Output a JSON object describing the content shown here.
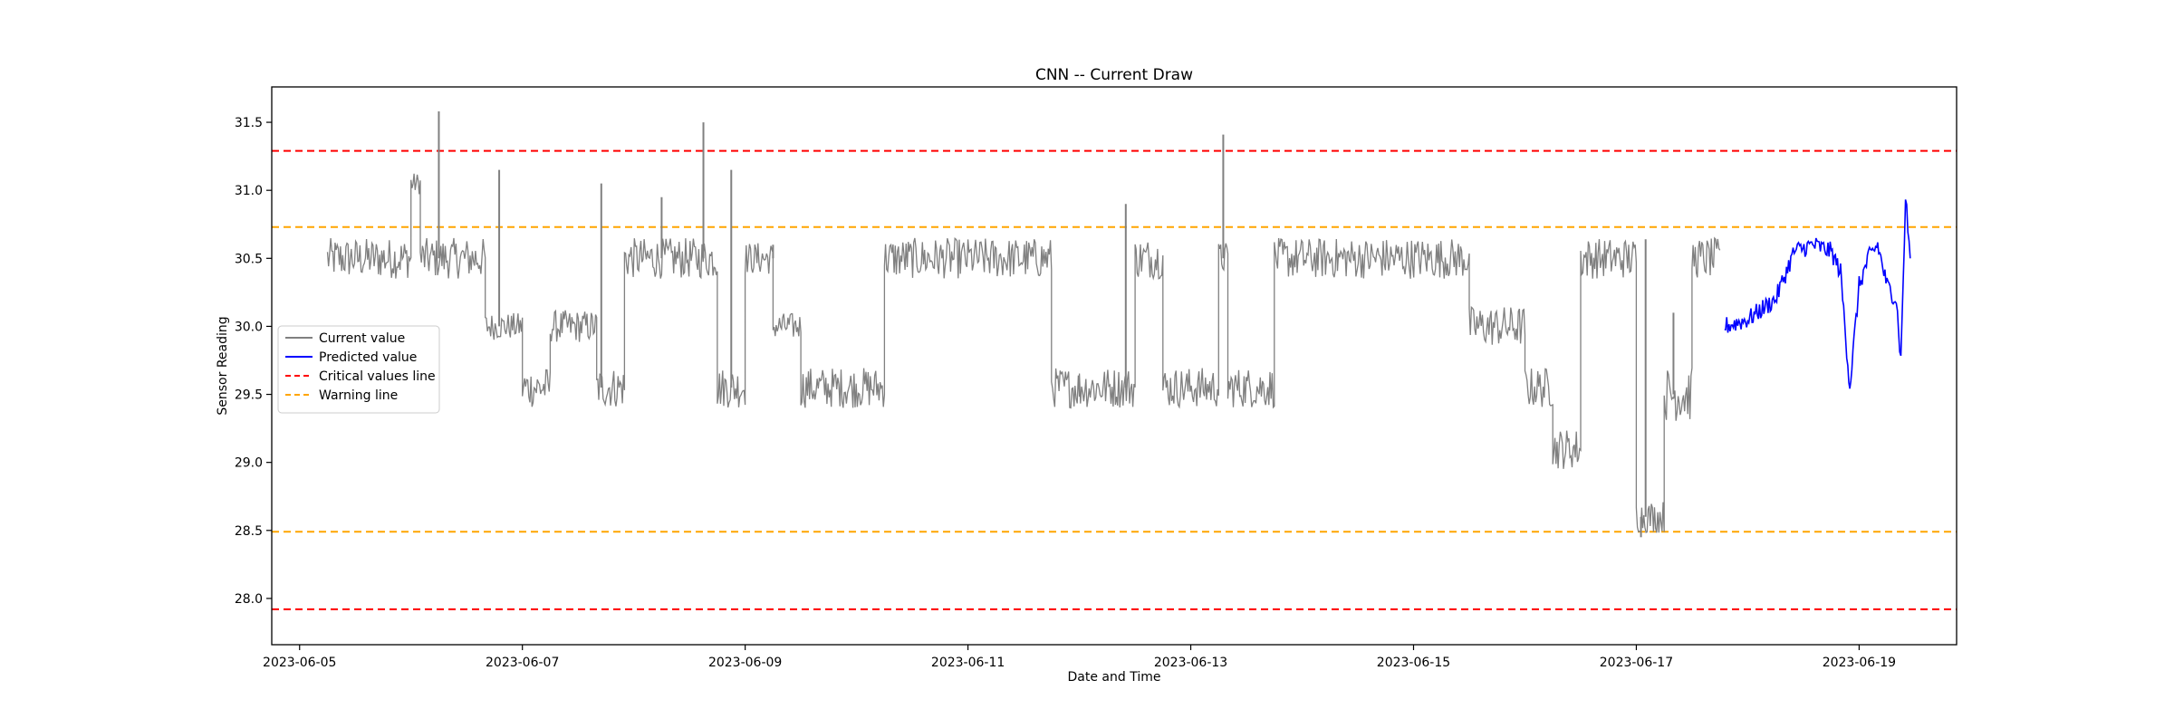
{
  "chart_data": {
    "type": "line",
    "title": "CNN -- Current Draw",
    "xlabel": "Date and Time",
    "ylabel": "Sensor Reading",
    "x_range": [
      "2023-06-04T18:00",
      "2023-06-19T21:00"
    ],
    "ylim": [
      27.66,
      31.76
    ],
    "grid": false,
    "x_ticks": [
      "2023-06-05",
      "2023-06-07",
      "2023-06-09",
      "2023-06-11",
      "2023-06-13",
      "2023-06-15",
      "2023-06-17",
      "2023-06-19"
    ],
    "y_ticks": [
      "28.0",
      "28.5",
      "29.0",
      "29.5",
      "30.0",
      "30.5",
      "31.0",
      "31.5"
    ],
    "legend": {
      "position": "center-left",
      "entries": [
        {
          "label": "Current value",
          "color": "#808080",
          "style": "solid"
        },
        {
          "label": "Predicted value",
          "color": "#0000ff",
          "style": "solid"
        },
        {
          "label": "Critical values line",
          "color": "#ff0000",
          "style": "dashed"
        },
        {
          "label": "Warning line",
          "color": "#ffa500",
          "style": "dashed"
        }
      ]
    },
    "reference_lines": [
      {
        "name": "Critical values line",
        "y": 31.29,
        "color": "#ff0000",
        "style": "dashed"
      },
      {
        "name": "Critical values line",
        "y": 27.92,
        "color": "#ff0000",
        "style": "dashed"
      },
      {
        "name": "Warning line",
        "y": 30.73,
        "color": "#ffa500",
        "style": "dashed"
      },
      {
        "name": "Warning line",
        "y": 28.49,
        "color": "#ffa500",
        "style": "dashed"
      }
    ],
    "series": [
      {
        "name": "Current value",
        "color": "#808080",
        "segments": [
          {
            "start": "2023-06-05T06:00",
            "end": "2023-06-06T00:00",
            "level": 30.5,
            "noise": 0.15
          },
          {
            "start": "2023-06-06T00:00",
            "end": "2023-06-06T02:00",
            "level": 31.05,
            "noise": 0.08
          },
          {
            "start": "2023-06-06T02:00",
            "end": "2023-06-06T16:00",
            "level": 30.5,
            "noise": 0.15
          },
          {
            "start": "2023-06-06T16:00",
            "end": "2023-06-07T00:00",
            "level": 30.0,
            "noise": 0.1
          },
          {
            "start": "2023-06-07T00:00",
            "end": "2023-06-07T06:00",
            "level": 29.55,
            "noise": 0.15
          },
          {
            "start": "2023-06-07T06:00",
            "end": "2023-06-07T16:00",
            "level": 30.0,
            "noise": 0.12
          },
          {
            "start": "2023-06-07T16:00",
            "end": "2023-06-07T22:00",
            "level": 29.55,
            "noise": 0.15
          },
          {
            "start": "2023-06-07T22:00",
            "end": "2023-06-08T18:00",
            "level": 30.5,
            "noise": 0.15
          },
          {
            "start": "2023-06-08T18:00",
            "end": "2023-06-09T00:00",
            "level": 29.55,
            "noise": 0.15
          },
          {
            "start": "2023-06-09T00:00",
            "end": "2023-06-09T06:00",
            "level": 30.5,
            "noise": 0.12
          },
          {
            "start": "2023-06-09T06:00",
            "end": "2023-06-09T12:00",
            "level": 30.0,
            "noise": 0.1
          },
          {
            "start": "2023-06-09T12:00",
            "end": "2023-06-10T06:00",
            "level": 29.55,
            "noise": 0.15
          },
          {
            "start": "2023-06-10T06:00",
            "end": "2023-06-11T18:00",
            "level": 30.5,
            "noise": 0.15
          },
          {
            "start": "2023-06-11T18:00",
            "end": "2023-06-12T00:00",
            "level": 29.55,
            "noise": 0.15
          },
          {
            "start": "2023-06-12T00:00",
            "end": "2023-06-12T12:00",
            "level": 29.55,
            "noise": 0.15
          },
          {
            "start": "2023-06-12T12:00",
            "end": "2023-06-12T18:00",
            "level": 30.5,
            "noise": 0.15
          },
          {
            "start": "2023-06-12T18:00",
            "end": "2023-06-13T06:00",
            "level": 29.55,
            "noise": 0.15
          },
          {
            "start": "2023-06-13T06:00",
            "end": "2023-06-13T08:00",
            "level": 30.5,
            "noise": 0.12
          },
          {
            "start": "2023-06-13T08:00",
            "end": "2023-06-13T18:00",
            "level": 29.55,
            "noise": 0.15
          },
          {
            "start": "2023-06-13T18:00",
            "end": "2023-06-15T12:00",
            "level": 30.5,
            "noise": 0.15
          },
          {
            "start": "2023-06-15T12:00",
            "end": "2023-06-16T00:00",
            "level": 30.0,
            "noise": 0.15
          },
          {
            "start": "2023-06-16T00:00",
            "end": "2023-06-16T06:00",
            "level": 29.55,
            "noise": 0.15
          },
          {
            "start": "2023-06-16T06:00",
            "end": "2023-06-16T12:00",
            "level": 29.1,
            "noise": 0.15
          },
          {
            "start": "2023-06-16T12:00",
            "end": "2023-06-17T00:00",
            "level": 30.5,
            "noise": 0.15
          },
          {
            "start": "2023-06-17T00:00",
            "end": "2023-06-17T06:00",
            "level": 28.6,
            "noise": 0.12
          },
          {
            "start": "2023-06-17T06:00",
            "end": "2023-06-17T12:00",
            "level": 29.5,
            "noise": 0.2
          },
          {
            "start": "2023-06-17T12:00",
            "end": "2023-06-17T18:00",
            "level": 30.5,
            "noise": 0.15
          }
        ],
        "spikes": [
          {
            "x": "2023-06-06T06:00",
            "y": 31.58
          },
          {
            "x": "2023-06-06T19:00",
            "y": 31.15
          },
          {
            "x": "2023-06-07T17:00",
            "y": 31.05
          },
          {
            "x": "2023-06-08T06:00",
            "y": 30.95
          },
          {
            "x": "2023-06-08T15:00",
            "y": 31.5
          },
          {
            "x": "2023-06-08T21:00",
            "y": 31.15
          },
          {
            "x": "2023-06-09T06:00",
            "y": 30.6
          },
          {
            "x": "2023-06-12T10:00",
            "y": 30.9
          },
          {
            "x": "2023-06-13T07:00",
            "y": 31.41
          },
          {
            "x": "2023-06-17T01:00",
            "y": 28.45
          },
          {
            "x": "2023-06-17T02:00",
            "y": 30.64
          },
          {
            "x": "2023-06-17T08:00",
            "y": 30.1
          }
        ]
      },
      {
        "name": "Predicted value",
        "color": "#0000ff",
        "points": [
          {
            "x": "2023-06-17T19:00",
            "y": 30.0
          },
          {
            "x": "2023-06-18T00:00",
            "y": 30.05
          },
          {
            "x": "2023-06-18T06:00",
            "y": 30.2
          },
          {
            "x": "2023-06-18T10:00",
            "y": 30.55
          },
          {
            "x": "2023-06-18T14:00",
            "y": 30.6
          },
          {
            "x": "2023-06-18T18:00",
            "y": 30.55
          },
          {
            "x": "2023-06-18T20:00",
            "y": 30.4
          },
          {
            "x": "2023-06-18T22:00",
            "y": 29.55
          },
          {
            "x": "2023-06-19T00:00",
            "y": 30.3
          },
          {
            "x": "2023-06-19T02:00",
            "y": 30.5
          },
          {
            "x": "2023-06-19T04:00",
            "y": 30.6
          },
          {
            "x": "2023-06-19T06:00",
            "y": 30.3
          },
          {
            "x": "2023-06-19T08:00",
            "y": 30.2
          },
          {
            "x": "2023-06-19T09:00",
            "y": 29.75
          },
          {
            "x": "2023-06-19T10:00",
            "y": 30.95
          },
          {
            "x": "2023-06-19T11:00",
            "y": 30.5
          }
        ]
      }
    ]
  }
}
